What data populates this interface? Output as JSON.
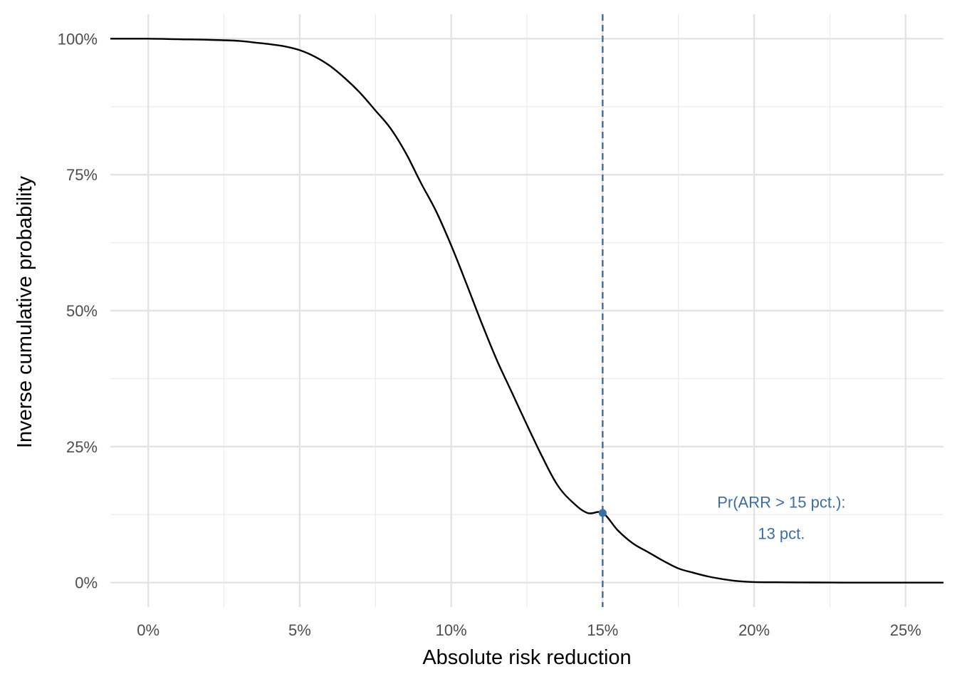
{
  "chart_data": {
    "type": "line",
    "xlabel": "Absolute risk reduction",
    "ylabel": "Inverse cumulative probability",
    "xlim": [
      -1.25,
      26.25
    ],
    "ylim": [
      -4.5,
      104.5
    ],
    "x_ticks": [
      0,
      5,
      10,
      15,
      20,
      25
    ],
    "x_tick_labels": [
      "0%",
      "5%",
      "10%",
      "15%",
      "20%",
      "25%"
    ],
    "x_minor_ticks": [
      2.5,
      7.5,
      12.5,
      17.5,
      22.5
    ],
    "y_ticks": [
      0,
      25,
      50,
      75,
      100
    ],
    "y_tick_labels": [
      "0%",
      "25%",
      "50%",
      "75%",
      "100%"
    ],
    "y_minor_ticks": [
      12.5,
      37.5,
      62.5,
      87.5
    ],
    "grid": true,
    "series": [
      {
        "color": "#000000",
        "x": [
          -1.25,
          0,
          1,
          2,
          3,
          3.5,
          4,
          4.5,
          5,
          5.5,
          6,
          6.5,
          7,
          7.5,
          8,
          8.5,
          9,
          9.5,
          10,
          10.5,
          11,
          11.5,
          12,
          12.5,
          13,
          13.5,
          14,
          14.5,
          15,
          15.5,
          16,
          16.5,
          17,
          17.5,
          18,
          18.5,
          19,
          19.5,
          20,
          21,
          22,
          23,
          24,
          25,
          26.25
        ],
        "y": [
          100,
          100,
          99.9,
          99.8,
          99.6,
          99.3,
          99,
          98.6,
          97.9,
          96.7,
          95,
          92.7,
          90,
          86.8,
          83.5,
          79,
          73.5,
          68.3,
          62,
          55,
          47.8,
          41,
          35,
          29,
          23.2,
          18,
          14.8,
          12.8,
          12.8,
          9.6,
          7.2,
          5.6,
          4,
          2.6,
          1.8,
          1.1,
          0.6,
          0.25,
          0.1,
          0.05,
          0.02,
          0,
          0,
          0,
          0
        ]
      }
    ],
    "reference_line": {
      "x": 15,
      "color": "#3d6ea3",
      "style": "dashed"
    },
    "highlight_point": {
      "x": 15,
      "y": 12.8,
      "color": "#3d6ea3"
    },
    "annotation": {
      "lines": [
        "Pr(ARR > 15 pct.):",
        "13 pct."
      ],
      "x": 20.9,
      "y": 14.8,
      "color": "#3d6ea3"
    }
  }
}
